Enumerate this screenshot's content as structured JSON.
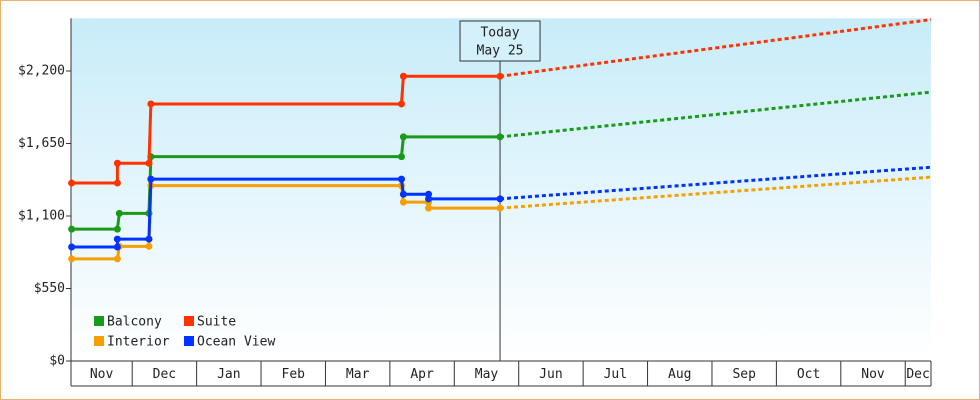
{
  "chart_data": {
    "type": "line",
    "ylim": [
      0,
      2600
    ],
    "yticks": [
      {
        "value": 0,
        "label": "$0"
      },
      {
        "value": 550,
        "label": "$550"
      },
      {
        "value": 1100,
        "label": "$1,100"
      },
      {
        "value": 1650,
        "label": "$1,650"
      },
      {
        "value": 2200,
        "label": "$2,200"
      }
    ],
    "xlim": [
      0.05,
      13.4
    ],
    "xticks": [
      {
        "value": 0.5,
        "label": "Nov"
      },
      {
        "value": 1.5,
        "label": "Dec"
      },
      {
        "value": 2.5,
        "label": "Jan"
      },
      {
        "value": 3.5,
        "label": "Feb"
      },
      {
        "value": 4.5,
        "label": "Mar"
      },
      {
        "value": 5.5,
        "label": "Apr"
      },
      {
        "value": 6.5,
        "label": "May"
      },
      {
        "value": 7.5,
        "label": "Jun"
      },
      {
        "value": 8.5,
        "label": "Jul"
      },
      {
        "value": 9.5,
        "label": "Aug"
      },
      {
        "value": 10.5,
        "label": "Sep"
      },
      {
        "value": 11.5,
        "label": "Oct"
      },
      {
        "value": 12.5,
        "label": "Nov"
      },
      {
        "value": 13.5,
        "label": "Dec"
      }
    ],
    "today": {
      "x": 6.71,
      "label": [
        "Today",
        "May 25"
      ]
    },
    "legend": "lower left",
    "series": [
      {
        "name": "Balcony",
        "color": "#1a9a1a",
        "x": [
          0.06,
          0.77,
          0.8,
          1.26,
          1.29,
          5.18,
          5.21,
          6.71
        ],
        "values": [
          1000,
          1000,
          1120,
          1120,
          1550,
          1550,
          1700,
          1700
        ],
        "forecast_x": [
          6.71,
          13.4
        ],
        "forecast_values": [
          1700,
          2040
        ]
      },
      {
        "name": "Suite",
        "color": "#ff3300",
        "x": [
          0.06,
          0.77,
          0.77,
          1.26,
          1.29,
          5.18,
          5.21,
          6.71
        ],
        "values": [
          1350,
          1350,
          1500,
          1500,
          1950,
          1950,
          2160,
          2160
        ],
        "forecast_x": [
          6.71,
          13.4
        ],
        "forecast_values": [
          2160,
          2590
        ]
      },
      {
        "name": "Interior",
        "color": "#f5a000",
        "x": [
          0.06,
          0.77,
          0.8,
          1.26,
          1.29,
          5.18,
          5.21,
          5.6,
          5.6,
          6.71
        ],
        "values": [
          775,
          775,
          870,
          870,
          1330,
          1330,
          1205,
          1205,
          1160,
          1160
        ],
        "forecast_x": [
          6.71,
          13.4
        ],
        "forecast_values": [
          1160,
          1395
        ]
      },
      {
        "name": "Ocean View",
        "color": "#0033ff",
        "x": [
          0.06,
          0.77,
          0.77,
          1.26,
          1.29,
          5.18,
          5.21,
          5.6,
          5.6,
          6.71
        ],
        "values": [
          865,
          865,
          925,
          925,
          1380,
          1380,
          1265,
          1265,
          1230,
          1230
        ],
        "forecast_x": [
          6.71,
          13.4
        ],
        "forecast_values": [
          1230,
          1470
        ]
      }
    ]
  }
}
